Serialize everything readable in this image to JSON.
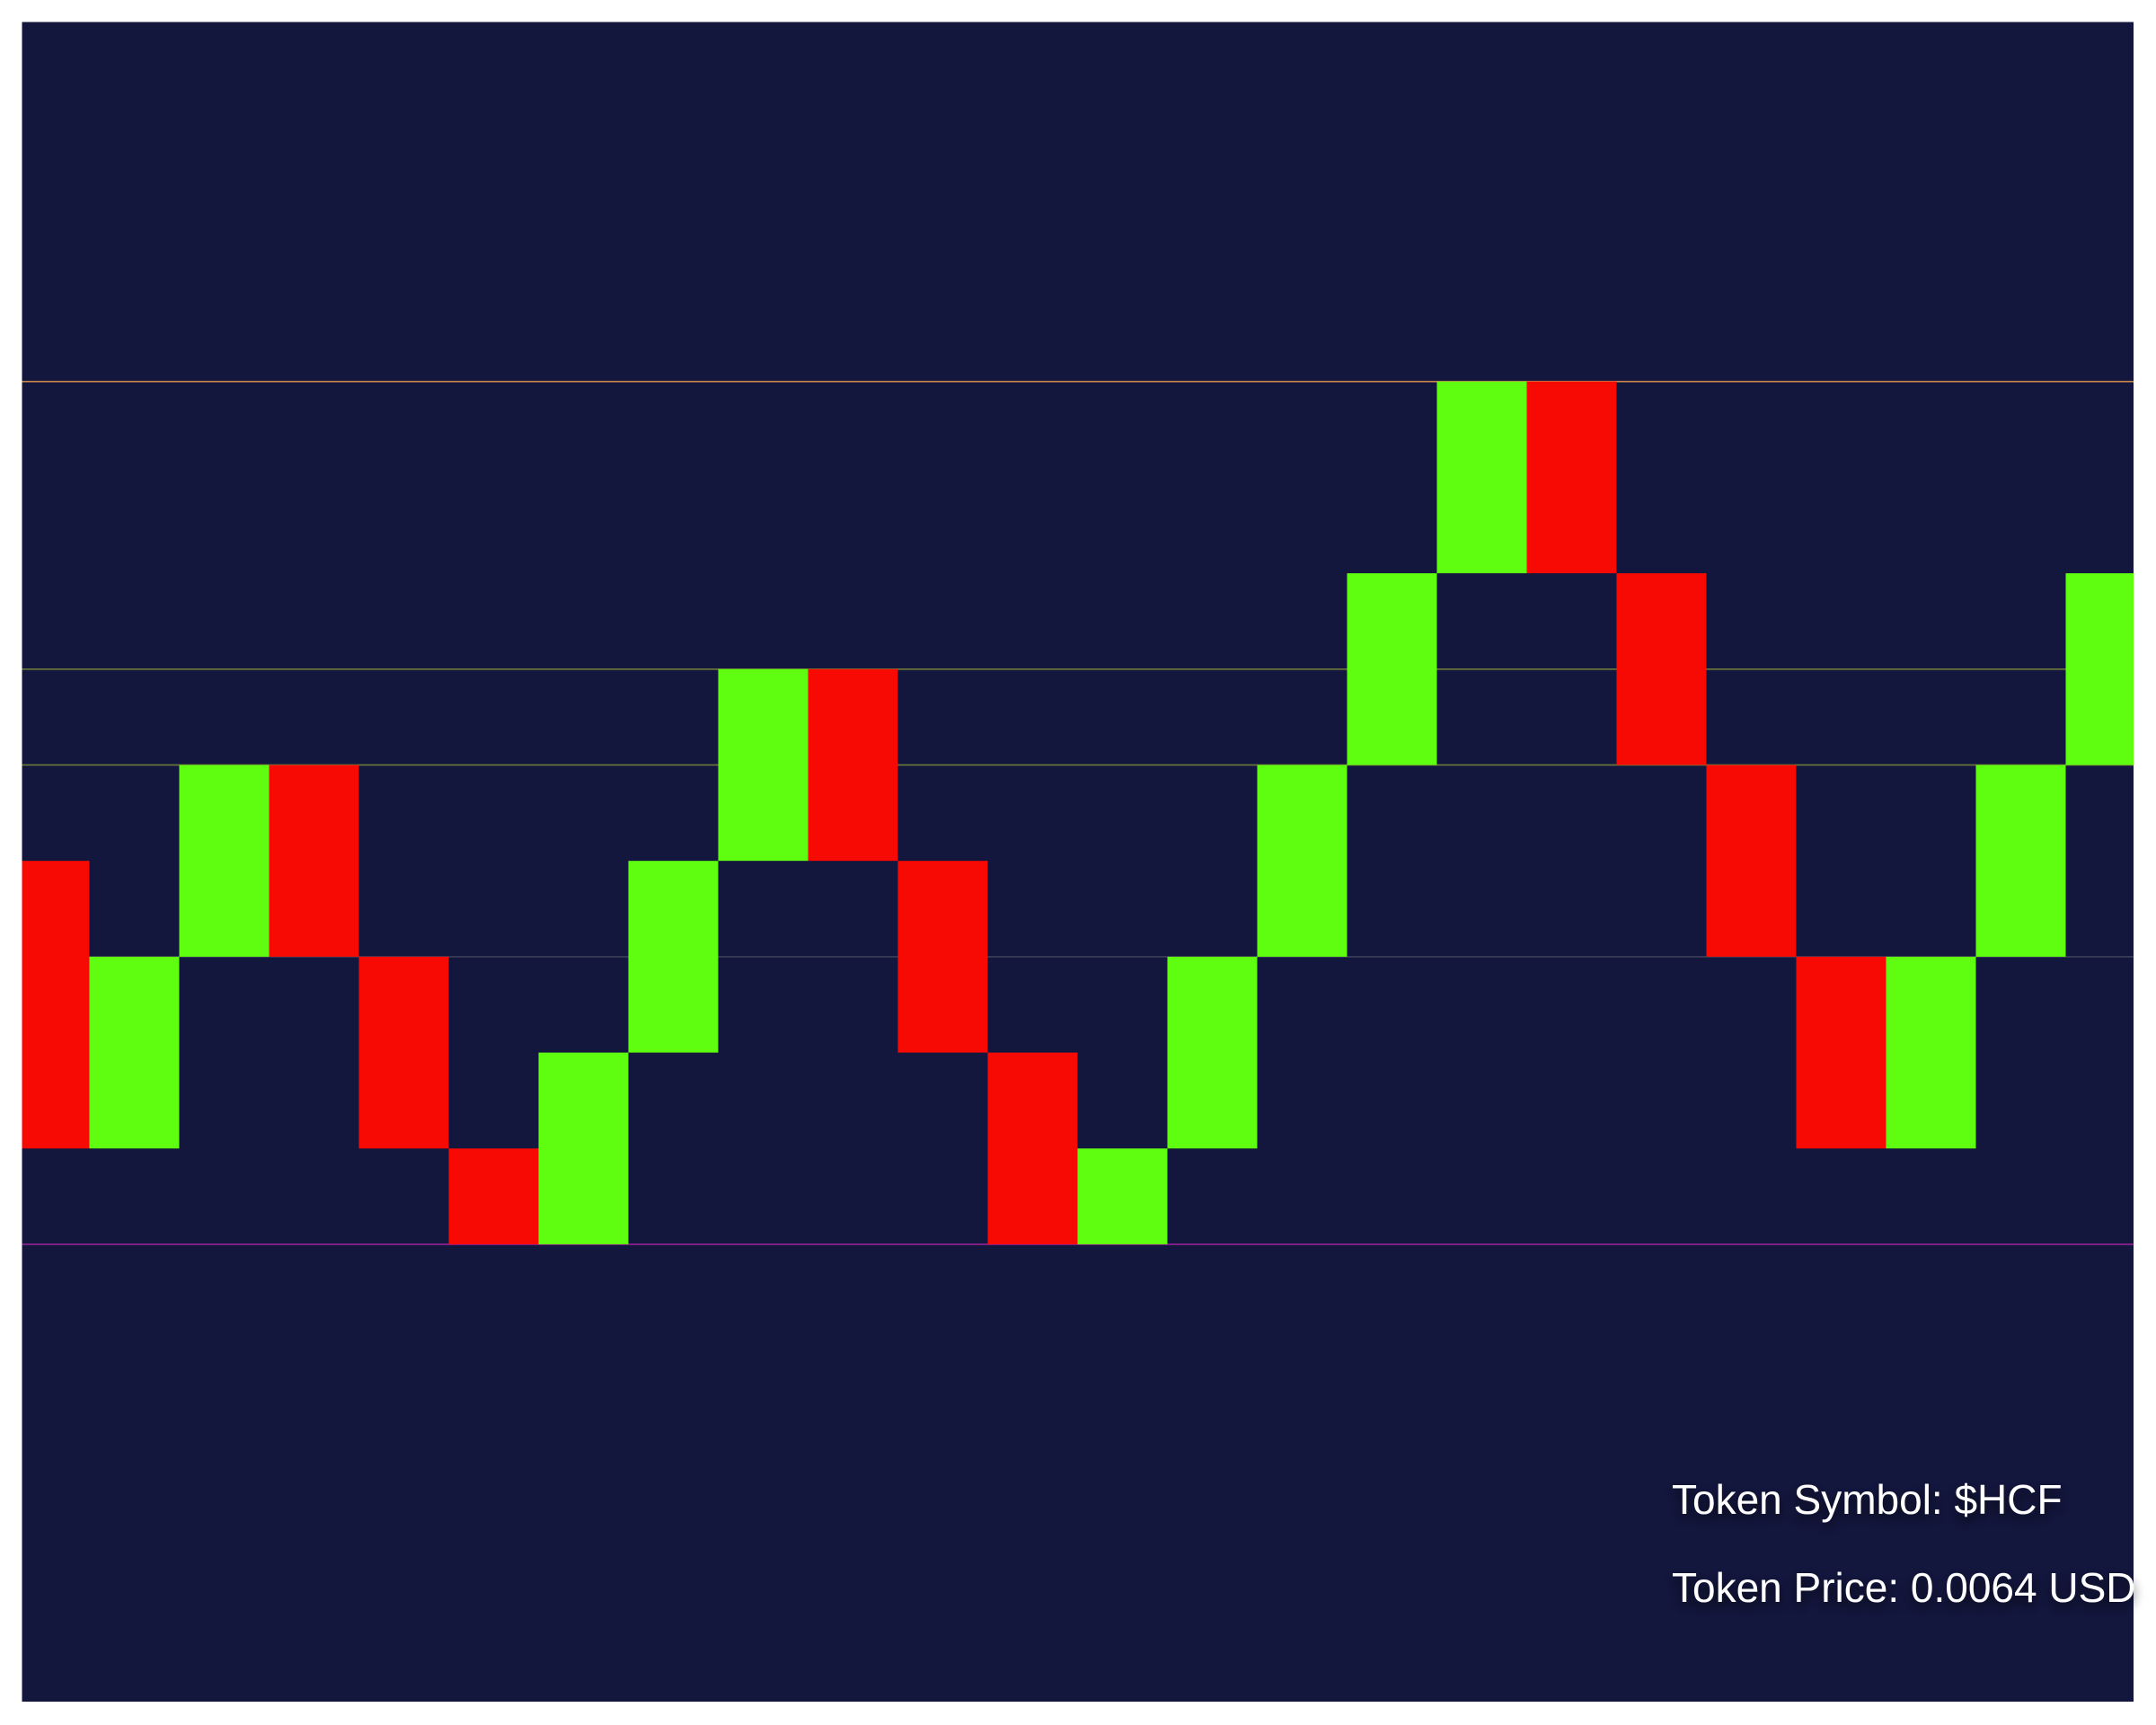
{
  "chart_data": {
    "type": "renko",
    "open": [
      4,
      1,
      3,
      5,
      3,
      1,
      0,
      2,
      4,
      6,
      4,
      2,
      0,
      1,
      3,
      5,
      7,
      9,
      7,
      5,
      3,
      1,
      3,
      5
    ],
    "close": [
      1,
      3,
      5,
      3,
      1,
      0,
      2,
      4,
      6,
      4,
      2,
      0,
      1,
      3,
      5,
      7,
      9,
      7,
      5,
      3,
      1,
      3,
      5,
      7
    ],
    "up_color": "#5ffe10",
    "down_color": "#f80a04",
    "background": "#13163d",
    "ylim": [
      -4.77,
      12.75
    ],
    "levels": [
      {
        "value": 9,
        "color": "#c8874a"
      },
      {
        "value": 6,
        "color": "#6d7a38"
      },
      {
        "value": 5,
        "color": "#6d7a38"
      },
      {
        "value": 3,
        "color": "#3c3f58"
      },
      {
        "value": 0,
        "color": "#a0209c"
      }
    ],
    "annotations": [
      "Token Symbol: $HCF",
      "Token Price: 0.0064 USD"
    ]
  }
}
